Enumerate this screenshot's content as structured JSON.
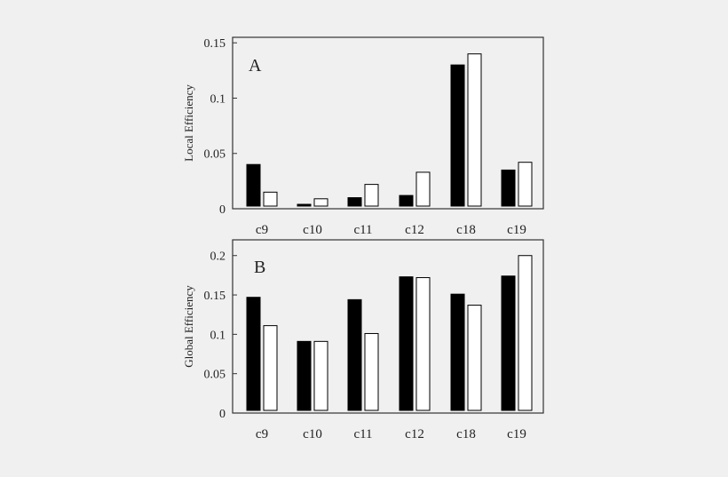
{
  "colors": {
    "background": "#f0f0f0",
    "series_filled": "#000000",
    "series_open": "#ffffff",
    "axis": "#333333"
  },
  "chart_data": [
    {
      "type": "bar",
      "panel_label": "A",
      "ylabel": "Local Efficiency",
      "xlabel": "",
      "categories": [
        "c9",
        "c10",
        "c11",
        "c12",
        "c18",
        "c19"
      ],
      "ylim": [
        0,
        0.155
      ],
      "yticks": [
        0,
        0.05,
        0.1,
        0.15
      ],
      "ytick_labels": [
        "0",
        "0.05",
        "0.1",
        "0.15"
      ],
      "series": [
        {
          "fill": "#000000",
          "values": [
            0.04,
            0.004,
            0.01,
            0.012,
            0.13,
            0.035
          ]
        },
        {
          "fill": "#ffffff",
          "values": [
            0.015,
            0.009,
            0.022,
            0.033,
            0.14,
            0.042
          ]
        }
      ]
    },
    {
      "type": "bar",
      "panel_label": "B",
      "ylabel": "Global Efficiency",
      "xlabel": "",
      "categories": [
        "c9",
        "c10",
        "c11",
        "c12",
        "c18",
        "c19"
      ],
      "ylim": [
        0,
        0.22
      ],
      "yticks": [
        0,
        0.05,
        0.1,
        0.15,
        0.2
      ],
      "ytick_labels": [
        "0",
        "0.05",
        "0.1",
        "0.15",
        "0.2"
      ],
      "series": [
        {
          "fill": "#000000",
          "values": [
            0.147,
            0.091,
            0.144,
            0.173,
            0.151,
            0.174
          ]
        },
        {
          "fill": "#ffffff",
          "values": [
            0.111,
            0.091,
            0.101,
            0.172,
            0.137,
            0.2
          ]
        }
      ]
    }
  ]
}
